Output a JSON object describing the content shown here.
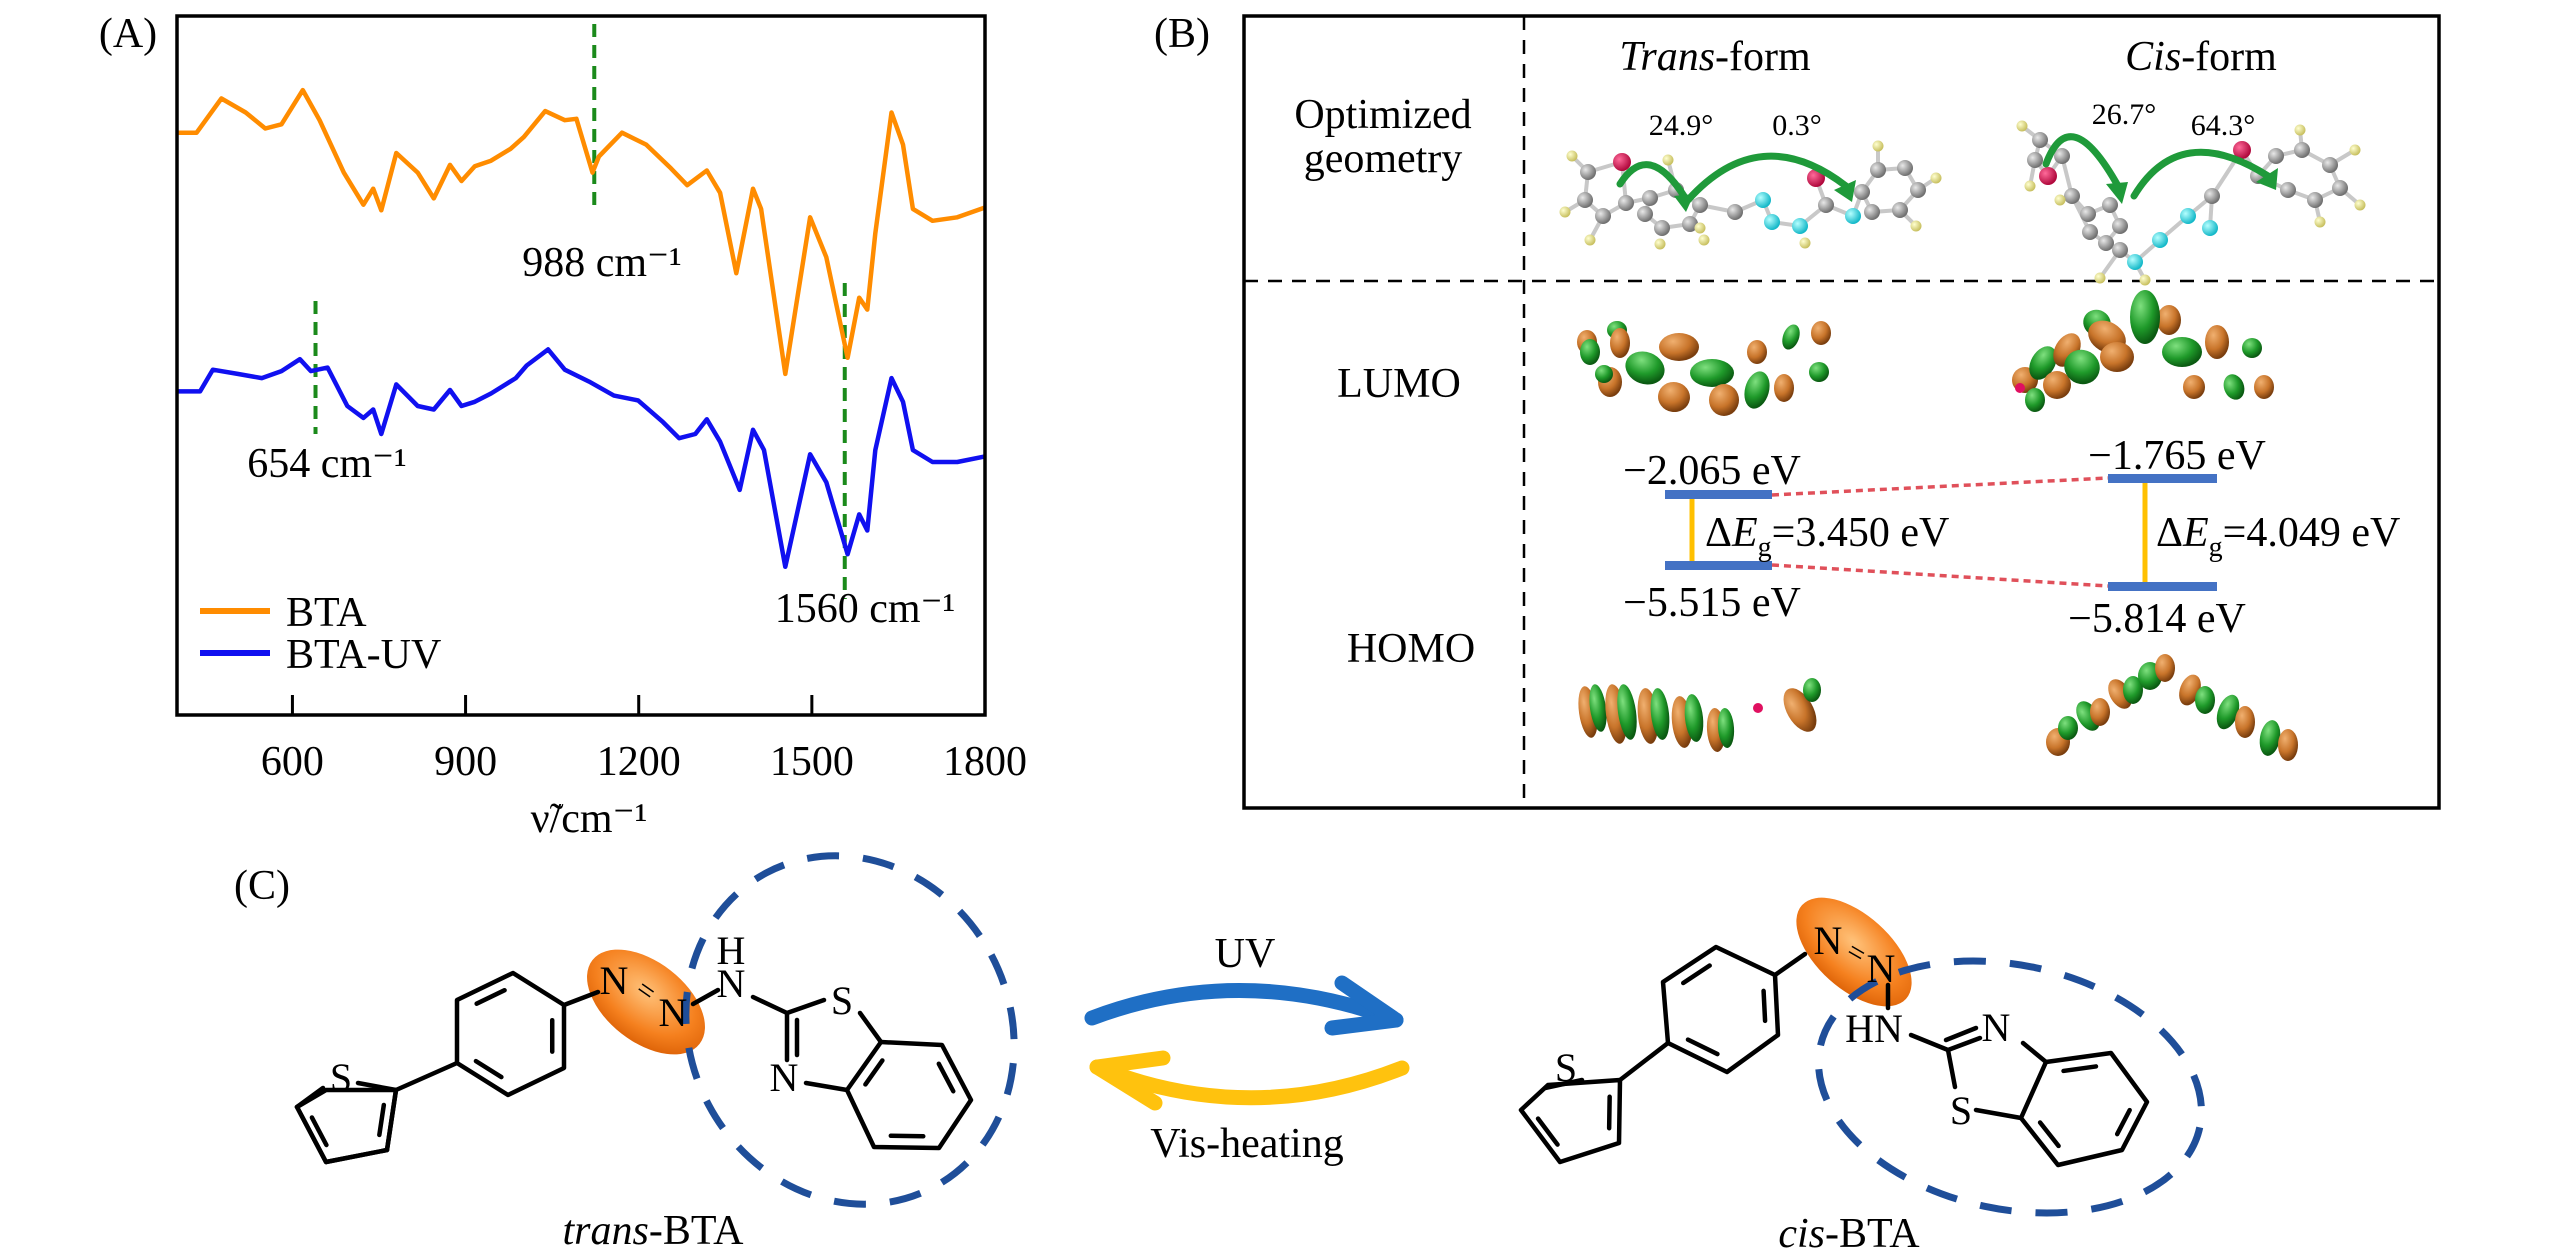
{
  "panel_labels": {
    "a": "(A)",
    "b": "(B)",
    "c": "(C)"
  },
  "chart_data": {
    "type": "line",
    "title": "",
    "xlabel": "ν̃/cm⁻¹",
    "ylabel": "",
    "xlim": [
      400,
      1800
    ],
    "ylim": [
      0,
      100
    ],
    "xticks": [
      600,
      900,
      1200,
      1500,
      1800
    ],
    "xtick_labels": [
      "600",
      "900",
      "1200",
      "1500",
      "1800"
    ],
    "grid": false,
    "legend_position": "bottom-left",
    "series": [
      {
        "name": "BTA",
        "color": "#ff8c00",
        "x": [
          400,
          434,
          477,
          519,
          553,
          581,
          618,
          647,
          689,
          723,
          740,
          754,
          780,
          817,
          845,
          873,
          893,
          916,
          944,
          978,
          1001,
          1038,
          1072,
          1092,
          1120,
          1131,
          1171,
          1213,
          1256,
          1284,
          1318,
          1341,
          1369,
          1398,
          1412,
          1454,
          1497,
          1525,
          1562,
          1582,
          1596,
          1610,
          1638,
          1658,
          1675,
          1709,
          1752,
          1800
        ],
        "y": [
          83.3,
          83.3,
          88.2,
          86.2,
          83.9,
          84.5,
          89.4,
          85.1,
          77.6,
          73.0,
          75.3,
          72.2,
          80.4,
          77.6,
          73.9,
          78.7,
          76.4,
          78.5,
          79.3,
          81.0,
          82.7,
          86.4,
          85.1,
          85.3,
          77.6,
          79.9,
          83.3,
          81.6,
          78.2,
          75.8,
          77.9,
          74.7,
          63.2,
          75.3,
          72.4,
          48.8,
          71.2,
          65.5,
          51.1,
          59.7,
          58.0,
          68.9,
          86.2,
          81.6,
          72.4,
          70.7,
          71.2,
          72.6
        ]
      },
      {
        "name": "BTA-UV",
        "color": "#1010f0",
        "x": [
          400,
          440,
          462,
          505,
          547,
          581,
          613,
          632,
          661,
          695,
          723,
          740,
          754,
          780,
          817,
          845,
          873,
          893,
          916,
          944,
          987,
          1006,
          1043,
          1072,
          1114,
          1157,
          1199,
          1242,
          1270,
          1298,
          1318,
          1341,
          1375,
          1398,
          1417,
          1454,
          1497,
          1525,
          1562,
          1582,
          1596,
          1610,
          1638,
          1658,
          1675,
          1709,
          1752,
          1800
        ],
        "y": [
          46.3,
          46.3,
          49.4,
          48.8,
          48.2,
          49.2,
          50.9,
          49.2,
          49.7,
          44.2,
          42.5,
          43.7,
          40.2,
          47.3,
          44.2,
          43.7,
          46.5,
          44.2,
          44.8,
          46.0,
          48.2,
          50.0,
          52.3,
          49.4,
          47.7,
          45.7,
          45.0,
          41.9,
          39.6,
          40.2,
          42.3,
          39.1,
          32.2,
          40.8,
          37.9,
          21.2,
          37.3,
          33.3,
          23.0,
          28.7,
          26.4,
          37.9,
          48.2,
          44.8,
          37.9,
          36.2,
          36.2,
          37.0
        ]
      }
    ],
    "annotations": [
      {
        "label": "988 cm⁻¹",
        "marker_x": 1123
      },
      {
        "label": "654 cm⁻¹",
        "marker_x": 640
      },
      {
        "label": "1560 cm⁻¹",
        "marker_x": 1557
      }
    ],
    "annotation_color": "#1b8a1b"
  },
  "panel_b": {
    "columns": [
      {
        "italic": "Trans",
        "suffix": "-form"
      },
      {
        "italic": "Cis",
        "suffix": "-form"
      }
    ],
    "row_geometry": {
      "line1": "Optimized",
      "line2": "geometry"
    },
    "row_lumo": "LUMO",
    "row_homo": "HOMO",
    "angles": {
      "trans": [
        "24.9°",
        "0.3°"
      ],
      "cis": [
        "26.7°",
        "64.3°"
      ]
    },
    "levels": {
      "trans": {
        "lumo": "−2.065 eV",
        "homo": "−5.515 eV",
        "gap_value": "=3.450 eV"
      },
      "cis": {
        "lumo": "−1.765 eV",
        "homo": "−5.814 eV",
        "gap_value": "=4.049 eV"
      }
    },
    "gap_delta": "Δ",
    "gap_symbol": "E",
    "gap_sub": "g",
    "colors": {
      "level": "#4472c4",
      "gap": "#ffc000",
      "link": "#e0505a",
      "lobe_positive": "#1f9a2a",
      "lobe_negative": "#c8742a"
    }
  },
  "panel_c": {
    "uv_label": "UV",
    "vis_label": "Vis-heating",
    "trans_label": {
      "italic": "trans",
      "suffix": "-BTA"
    },
    "cis_label": {
      "italic": "cis",
      "suffix": "-BTA"
    },
    "atoms": {
      "S": "S",
      "N": "N",
      "H": "H",
      "HN": "HN",
      "double": "="
    },
    "colors": {
      "uv_arrow": "#1f6fc5",
      "vis_arrow": "#ffc20e",
      "highlight": "#f5801e",
      "group_outline": "#1f4e99"
    }
  }
}
